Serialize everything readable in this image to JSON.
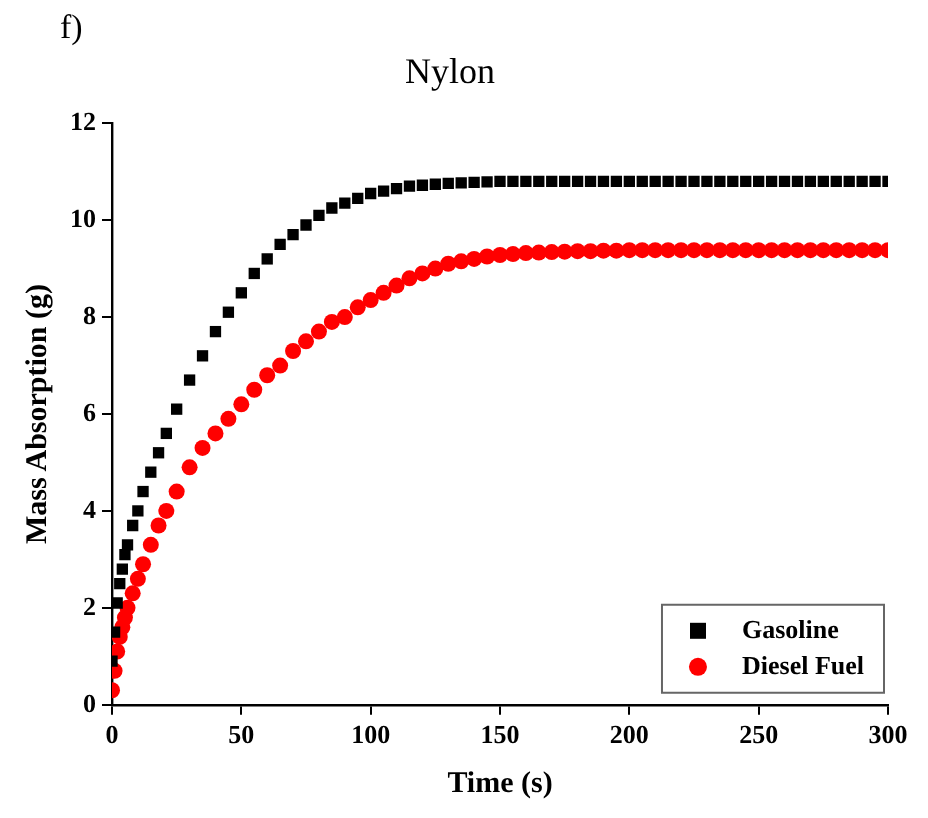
{
  "chart_data": {
    "type": "scatter",
    "title": "Nylon",
    "annotations": [
      "f)"
    ],
    "xlabel": "Time (s)",
    "ylabel": "Mass Absorption (g)",
    "x": [
      0,
      1,
      2,
      3,
      4,
      5,
      6,
      8,
      10,
      12,
      15,
      18,
      21,
      25,
      30,
      35,
      40,
      45,
      50,
      55,
      60,
      65,
      70,
      75,
      80,
      85,
      90,
      95,
      100,
      105,
      110,
      115,
      120,
      125,
      130,
      135,
      140,
      145,
      150,
      155,
      160,
      165,
      170,
      175,
      180,
      185,
      190,
      195,
      200,
      205,
      210,
      215,
      220,
      225,
      230,
      235,
      240,
      245,
      250,
      255,
      260,
      265,
      270,
      275,
      280,
      285,
      290,
      295,
      300
    ],
    "series": [
      {
        "name": "Gasoline",
        "color": "#000000",
        "marker": "square",
        "values": [
          0.9,
          1.5,
          2.1,
          2.5,
          2.8,
          3.1,
          3.3,
          3.7,
          4.0,
          4.4,
          4.8,
          5.2,
          5.6,
          6.1,
          6.7,
          7.2,
          7.7,
          8.1,
          8.5,
          8.9,
          9.2,
          9.5,
          9.7,
          9.9,
          10.1,
          10.25,
          10.35,
          10.45,
          10.55,
          10.6,
          10.65,
          10.7,
          10.72,
          10.74,
          10.76,
          10.77,
          10.78,
          10.79,
          10.8,
          10.8,
          10.8,
          10.8,
          10.8,
          10.8,
          10.8,
          10.8,
          10.8,
          10.8,
          10.8,
          10.8,
          10.8,
          10.8,
          10.8,
          10.8,
          10.8,
          10.8,
          10.8,
          10.8,
          10.8,
          10.8,
          10.8,
          10.8,
          10.8,
          10.8,
          10.8,
          10.8,
          10.8,
          10.8,
          10.8
        ]
      },
      {
        "name": "Diesel Fuel",
        "color": "#ff0000",
        "marker": "circle",
        "values": [
          0.3,
          0.7,
          1.1,
          1.4,
          1.6,
          1.8,
          2.0,
          2.3,
          2.6,
          2.9,
          3.3,
          3.7,
          4.0,
          4.4,
          4.9,
          5.3,
          5.6,
          5.9,
          6.2,
          6.5,
          6.8,
          7.0,
          7.3,
          7.5,
          7.7,
          7.9,
          8.0,
          8.2,
          8.35,
          8.5,
          8.65,
          8.8,
          8.9,
          9.0,
          9.1,
          9.15,
          9.2,
          9.25,
          9.28,
          9.3,
          9.32,
          9.33,
          9.34,
          9.35,
          9.36,
          9.36,
          9.37,
          9.37,
          9.38,
          9.38,
          9.38,
          9.38,
          9.38,
          9.38,
          9.38,
          9.38,
          9.38,
          9.38,
          9.38,
          9.38,
          9.38,
          9.38,
          9.38,
          9.38,
          9.38,
          9.38,
          9.38,
          9.38,
          9.38
        ]
      }
    ],
    "xlim": [
      0,
      300
    ],
    "xticks": [
      0,
      50,
      100,
      150,
      200,
      250,
      300
    ],
    "ylim": [
      0,
      12
    ],
    "yticks": [
      0,
      2,
      4,
      6,
      8,
      10,
      12
    ],
    "legend": "bottom right"
  }
}
